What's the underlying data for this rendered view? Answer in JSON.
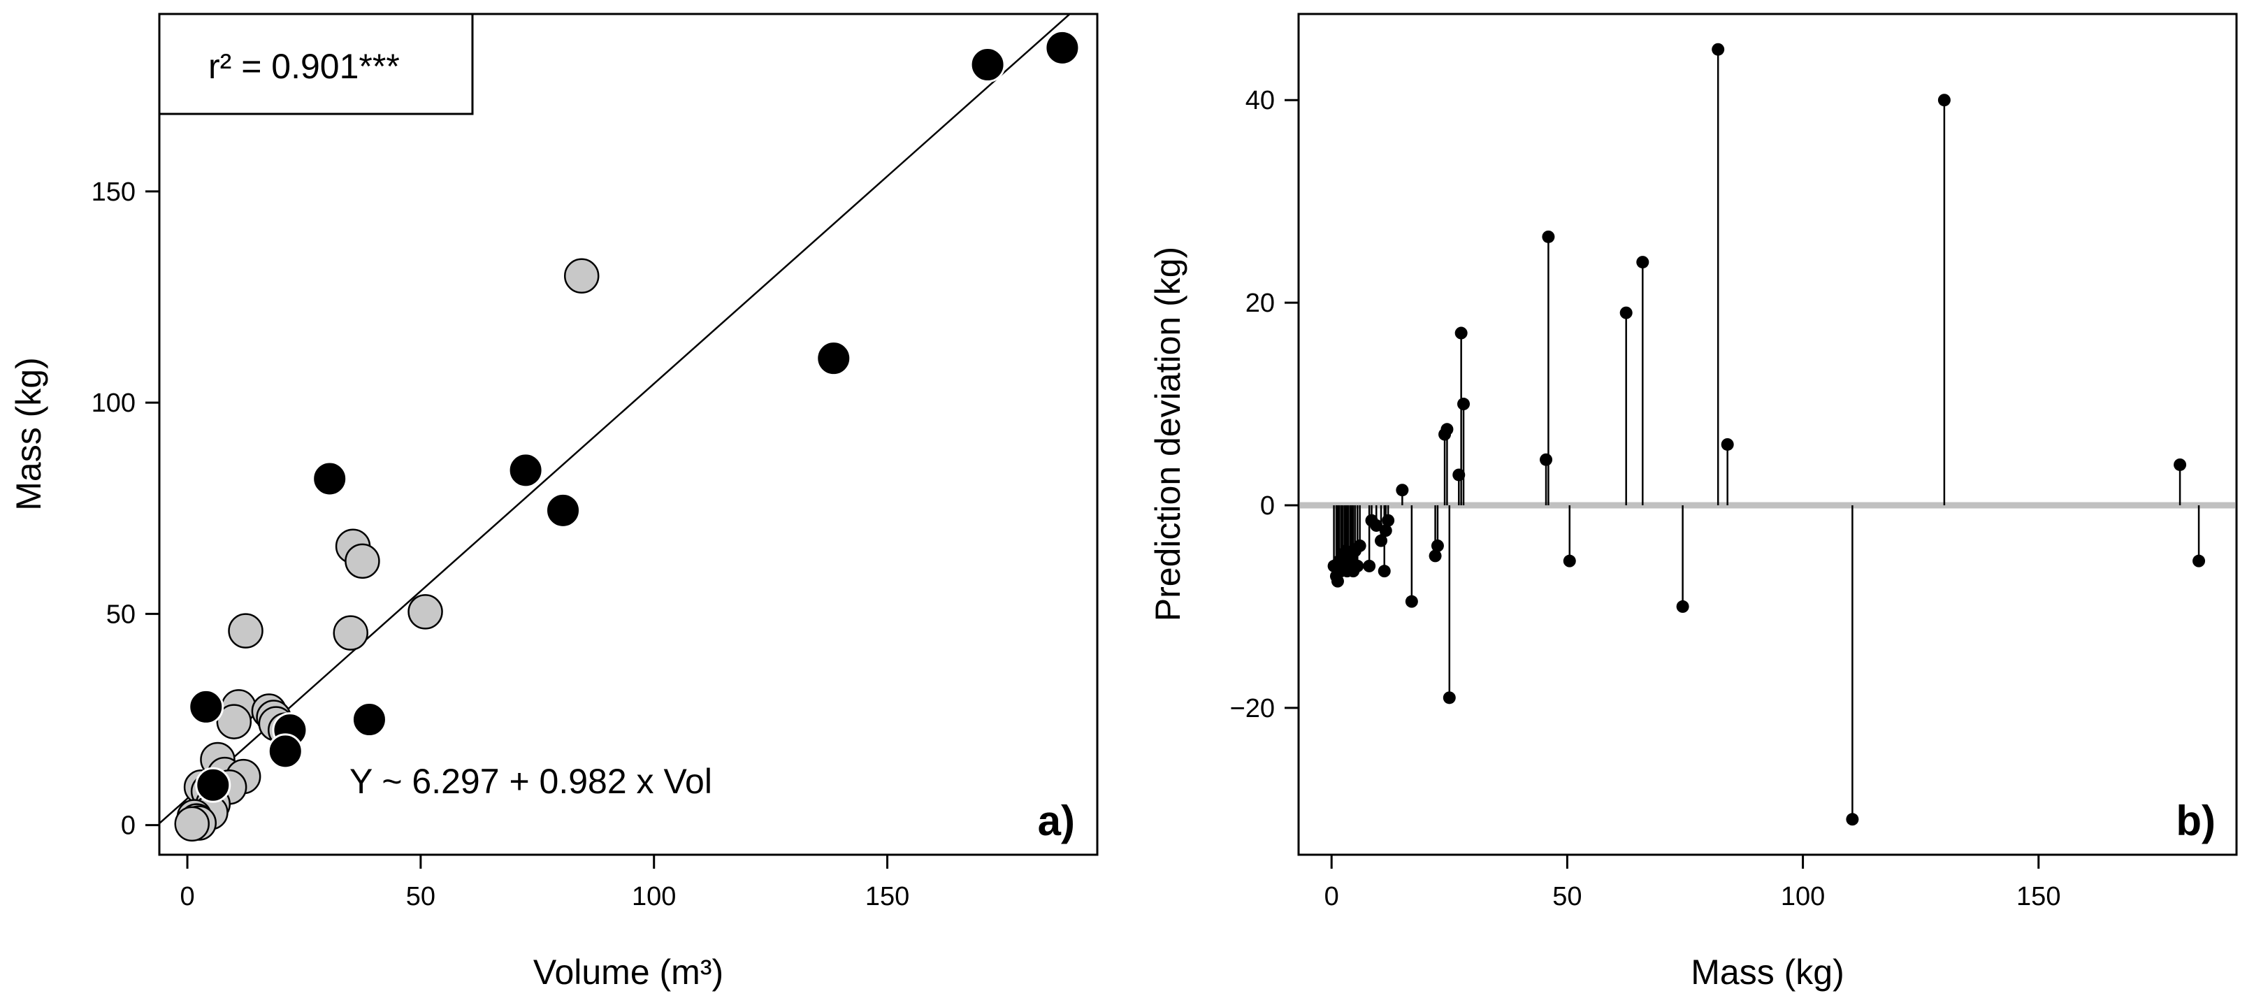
{
  "chart_data": [
    {
      "panel": "a)",
      "type": "scatter",
      "xlabel": "Volume (m³)",
      "ylabel": "Mass (kg)",
      "xlim": [
        -6,
        195
      ],
      "ylim": [
        -7,
        192
      ],
      "xticks": [
        0,
        50,
        100,
        150
      ],
      "yticks": [
        0,
        50,
        100,
        150
      ],
      "annotation_r2": "r² = 0.901***",
      "annotation_eq": "Y ~ 6.297 + 0.982 x Vol",
      "fit_line": {
        "intercept": 6.297,
        "slope": 0.982
      },
      "series": [
        {
          "name": "grey",
          "color": "#c8c8c8",
          "points": [
            [
              84.5,
              130
            ],
            [
              35.5,
              66
            ],
            [
              37.5,
              62.5
            ],
            [
              35,
              45.5
            ],
            [
              12.5,
              46
            ],
            [
              51,
              50.5
            ],
            [
              11,
              28
            ],
            [
              17.5,
              27
            ],
            [
              18.5,
              25.5
            ],
            [
              19,
              24
            ],
            [
              10,
              24.5
            ],
            [
              21,
              22.5
            ],
            [
              6.5,
              15.5
            ],
            [
              8,
              12
            ],
            [
              12,
              11.5
            ],
            [
              9,
              9
            ],
            [
              3,
              9
            ],
            [
              4.5,
              8
            ],
            [
              5.5,
              5
            ],
            [
              5,
              3
            ],
            [
              1.5,
              2
            ],
            [
              2,
              1
            ],
            [
              2.5,
              0.5
            ],
            [
              1,
              0.3
            ]
          ]
        },
        {
          "name": "black",
          "color": "#000000",
          "points": [
            [
              171.5,
              180
            ],
            [
              187.5,
              184
            ],
            [
              138.5,
              110.5
            ],
            [
              72.5,
              84
            ],
            [
              30.5,
              82
            ],
            [
              80.5,
              74.5
            ],
            [
              39,
              25
            ],
            [
              4,
              28
            ],
            [
              22,
              22.5
            ],
            [
              21,
              17.5
            ],
            [
              5.5,
              9.5
            ]
          ]
        }
      ]
    },
    {
      "panel": "b)",
      "type": "scatter",
      "subtype": "lollipop",
      "xlabel": "Mass (kg)",
      "ylabel": "Prediction deviation (kg)",
      "xlim": [
        -7,
        192
      ],
      "ylim": [
        -34.5,
        48.5
      ],
      "xticks": [
        0,
        50,
        100,
        150
      ],
      "yticks": [
        -20,
        0,
        20,
        40
      ],
      "baseline": 0,
      "baseline_color": "#c0c0c0",
      "points": [
        [
          0.5,
          -6
        ],
        [
          1,
          -7
        ],
        [
          1.3,
          -7.5
        ],
        [
          1.6,
          -5.5
        ],
        [
          2,
          -6.5
        ],
        [
          2.3,
          -5
        ],
        [
          2.7,
          -6
        ],
        [
          3,
          -4.5
        ],
        [
          3.3,
          -6.5
        ],
        [
          3.6,
          -5
        ],
        [
          4,
          -6
        ],
        [
          4.3,
          -5.5
        ],
        [
          4.6,
          -6.5
        ],
        [
          5,
          -4.5
        ],
        [
          5.5,
          -6
        ],
        [
          6,
          -4
        ],
        [
          8,
          -6
        ],
        [
          8.5,
          -1.5
        ],
        [
          9.5,
          -2
        ],
        [
          10.5,
          -3.5
        ],
        [
          11.2,
          -6.5
        ],
        [
          11.5,
          -2.5
        ],
        [
          12,
          -1.5
        ],
        [
          15,
          1.5
        ],
        [
          17,
          -9.5
        ],
        [
          22,
          -5
        ],
        [
          22.5,
          -4
        ],
        [
          24,
          7
        ],
        [
          24.5,
          7.5
        ],
        [
          25,
          -19
        ],
        [
          27,
          3
        ],
        [
          27.5,
          17
        ],
        [
          28,
          10
        ],
        [
          45.5,
          4.5
        ],
        [
          46,
          26.5
        ],
        [
          50.5,
          -5.5
        ],
        [
          62.5,
          19
        ],
        [
          66,
          24
        ],
        [
          74.5,
          -10
        ],
        [
          82,
          45
        ],
        [
          84,
          6
        ],
        [
          110.5,
          -31
        ],
        [
          130,
          40
        ],
        [
          180,
          4
        ],
        [
          184,
          -5.5
        ]
      ]
    }
  ]
}
